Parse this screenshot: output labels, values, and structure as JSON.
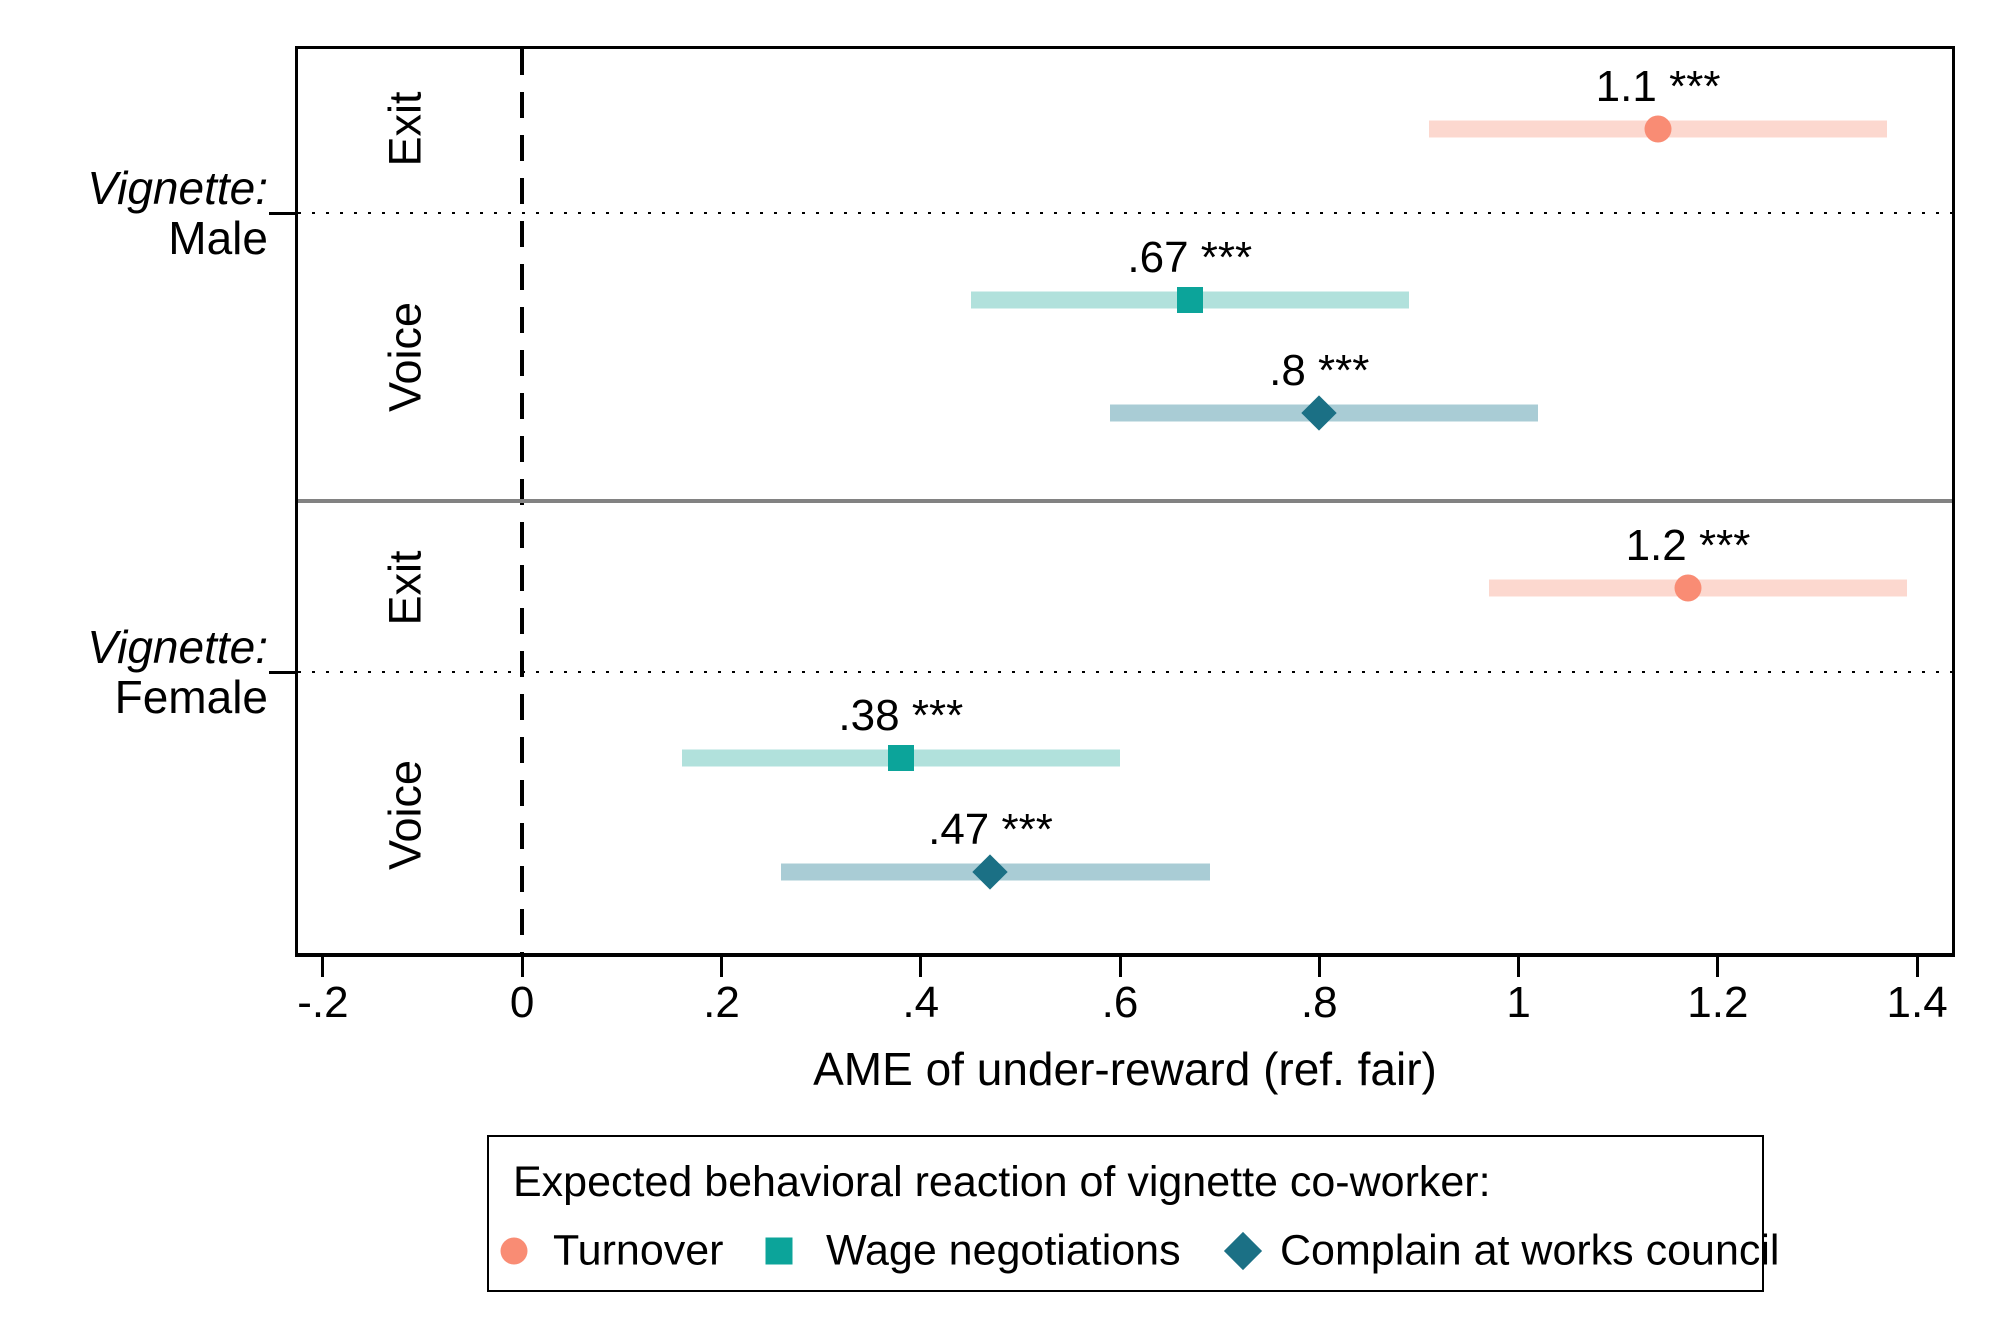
{
  "chart_data": {
    "type": "scatter",
    "subtype": "coefficient-dot-plot-with-ci-bands",
    "title": "",
    "xlabel": "AME of under-reward (ref. fair)",
    "xlim": [
      -0.225,
      1.435
    ],
    "xticks": [
      {
        "v": -0.2,
        "label": "-.2"
      },
      {
        "v": 0,
        "label": "0"
      },
      {
        "v": 0.2,
        "label": ".2"
      },
      {
        "v": 0.4,
        "label": ".4"
      },
      {
        "v": 0.6,
        "label": ".6"
      },
      {
        "v": 0.8,
        "label": ".8"
      },
      {
        "v": 1.0,
        "label": "1"
      },
      {
        "v": 1.2,
        "label": "1.2"
      },
      {
        "v": 1.4,
        "label": "1.4"
      }
    ],
    "zero_reference_line": 0,
    "grid": false,
    "groups": [
      {
        "id": "male",
        "group_label_line1": "Vignette:",
        "group_label_line2": "Male",
        "categories": [
          {
            "label": "Exit",
            "rows": [
              0
            ]
          },
          {
            "label": "Voice",
            "rows": [
              1,
              2
            ]
          }
        ],
        "points": [
          {
            "row": 0,
            "series": "Turnover",
            "category": "Exit",
            "est": 1.14,
            "ci_low": 0.91,
            "ci_high": 1.37,
            "label": "1.1 ***"
          },
          {
            "row": 1,
            "series": "Wage negotiations",
            "category": "Voice",
            "est": 0.67,
            "ci_low": 0.45,
            "ci_high": 0.89,
            "label": ".67 ***"
          },
          {
            "row": 2,
            "series": "Complain at works council",
            "category": "Voice",
            "est": 0.8,
            "ci_low": 0.59,
            "ci_high": 1.02,
            "label": ".8 ***"
          }
        ]
      },
      {
        "id": "female",
        "group_label_line1": "Vignette:",
        "group_label_line2": "Female",
        "categories": [
          {
            "label": "Exit",
            "rows": [
              0
            ]
          },
          {
            "label": "Voice",
            "rows": [
              1,
              2
            ]
          }
        ],
        "points": [
          {
            "row": 0,
            "series": "Turnover",
            "category": "Exit",
            "est": 1.17,
            "ci_low": 0.97,
            "ci_high": 1.39,
            "label": "1.2 ***"
          },
          {
            "row": 1,
            "series": "Wage negotiations",
            "category": "Voice",
            "est": 0.38,
            "ci_low": 0.16,
            "ci_high": 0.6,
            "label": ".38 ***"
          },
          {
            "row": 2,
            "series": "Complain at works council",
            "category": "Voice",
            "est": 0.47,
            "ci_low": 0.26,
            "ci_high": 0.69,
            "label": ".47 ***"
          }
        ]
      }
    ],
    "series_styles": {
      "Turnover": {
        "shape": "circle",
        "marker_color": "#f98c74",
        "band_color": "#fcd8cf"
      },
      "Wage negotiations": {
        "shape": "square",
        "marker_color": "#0ca49a",
        "band_color": "#b1e1dc"
      },
      "Complain at works council": {
        "shape": "diamond",
        "marker_color": "#1b7085",
        "band_color": "#a9ccd5"
      }
    },
    "legend": {
      "position": "bottom",
      "title": "Expected behavioral reaction of vignette co-worker:",
      "entries": [
        {
          "label": "Turnover",
          "shape": "circle",
          "color": "#f98c74"
        },
        {
          "label": "Wage negotiations",
          "shape": "square",
          "color": "#0ca49a"
        },
        {
          "label": "Complain at works council",
          "shape": "diamond",
          "color": "#1b7085"
        }
      ]
    }
  }
}
